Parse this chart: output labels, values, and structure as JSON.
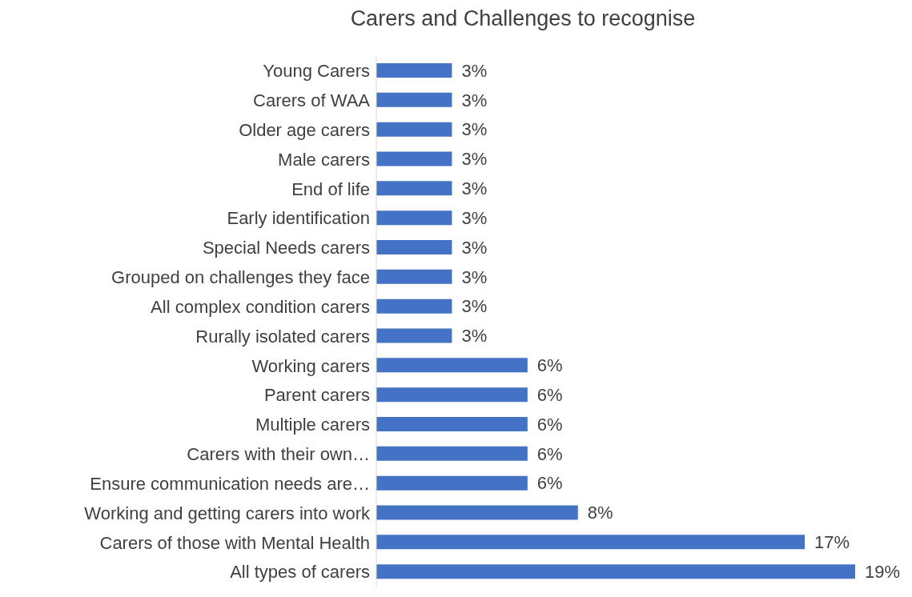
{
  "chart_data": {
    "type": "bar",
    "orientation": "horizontal",
    "title": "Carers and Challenges to recognise",
    "categories": [
      "Young Carers",
      "Carers of WAA",
      "Older age carers",
      "Male carers",
      "End of life",
      "Early identification",
      "Special Needs carers",
      "Grouped on challenges they face",
      "All complex condition carers",
      "Rurally isolated carers",
      "Working carers",
      "Parent carers",
      "Multiple carers",
      "Carers with their own…",
      "Ensure communication needs are…",
      "Working and getting carers into work",
      "Carers of those with Mental Health",
      "All types of carers"
    ],
    "values": [
      3,
      3,
      3,
      3,
      3,
      3,
      3,
      3,
      3,
      3,
      6,
      6,
      6,
      6,
      6,
      8,
      17,
      19
    ],
    "value_labels": [
      "3%",
      "3%",
      "3%",
      "3%",
      "3%",
      "3%",
      "3%",
      "3%",
      "3%",
      "3%",
      "6%",
      "6%",
      "6%",
      "6%",
      "6%",
      "8%",
      "17%",
      "19%"
    ],
    "color": "#4472c4"
  }
}
